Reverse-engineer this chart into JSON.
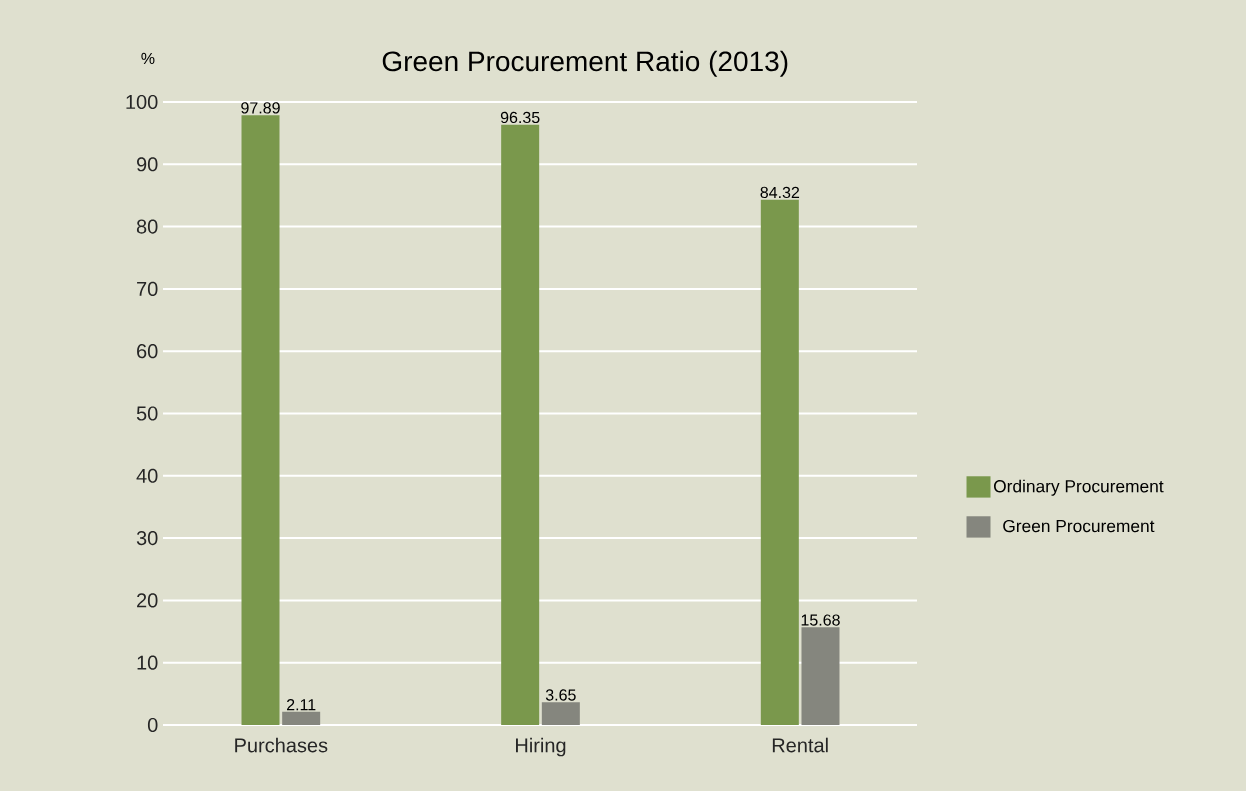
{
  "chart_data": {
    "type": "bar",
    "title": "Green Procurement Ratio (2013)",
    "ylabel": "%",
    "categories": [
      "Purchases",
      "Hiring",
      "Rental"
    ],
    "series": [
      {
        "name": "Ordinary Procurement",
        "color": "#7a984c",
        "values": [
          97.89,
          96.35,
          84.32
        ]
      },
      {
        "name": "Green Procurement",
        "color": "#85867e",
        "values": [
          2.11,
          3.65,
          15.68
        ]
      }
    ],
    "ylim": [
      0,
      100
    ],
    "yticks": [
      0,
      10,
      20,
      30,
      40,
      50,
      60,
      70,
      80,
      90,
      100
    ],
    "grid": "y",
    "legend": "right",
    "data_labels": true
  }
}
